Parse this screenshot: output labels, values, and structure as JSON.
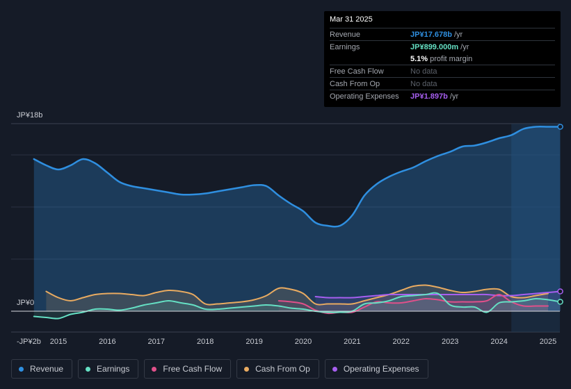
{
  "tooltip": {
    "date": "Mar 31 2025",
    "rows": [
      {
        "label": "Revenue",
        "value": "JP¥17.678b",
        "unit": " /yr",
        "color": "#2f8fe0"
      },
      {
        "label": "Earnings",
        "value": "JP¥899.000m",
        "unit": " /yr",
        "color": "#65e0c4"
      },
      {
        "label": "",
        "value": "5.1%",
        "unit": " profit margin",
        "color": "#ffffff"
      },
      {
        "label": "Free Cash Flow",
        "nodata": "No data"
      },
      {
        "label": "Cash From Op",
        "nodata": "No data"
      },
      {
        "label": "Operating Expenses",
        "value": "JP¥1.897b",
        "unit": " /yr",
        "color": "#a75ff0"
      }
    ]
  },
  "legend": [
    {
      "label": "Revenue",
      "color": "#2f8fe0"
    },
    {
      "label": "Earnings",
      "color": "#65e0c4"
    },
    {
      "label": "Free Cash Flow",
      "color": "#e0508a"
    },
    {
      "label": "Cash From Op",
      "color": "#e9ab61"
    },
    {
      "label": "Operating Expenses",
      "color": "#a75ff0"
    }
  ],
  "chart_data": {
    "type": "area",
    "y_unit": "JP¥ billions",
    "ylim": [
      -2,
      18
    ],
    "xlim": [
      2014.45,
      2025.25
    ],
    "y_tick_labels": [
      {
        "value": 18,
        "label": "JP¥18b"
      },
      {
        "value": 0,
        "label": "JP¥0"
      },
      {
        "value": -2,
        "label": "-JP¥2b"
      }
    ],
    "x_ticks": [
      2015,
      2016,
      2017,
      2018,
      2019,
      2020,
      2021,
      2022,
      2023,
      2024,
      2025
    ],
    "x_tick_labels": [
      "2015",
      "2016",
      "2017",
      "2018",
      "2019",
      "2020",
      "2021",
      "2022",
      "2023",
      "2024",
      "2025"
    ],
    "highlight_from": 2024.25,
    "series": [
      {
        "name": "Revenue",
        "color": "#2f8fe0",
        "x": [
          2014.5,
          2014.75,
          2015.0,
          2015.25,
          2015.5,
          2015.75,
          2016.0,
          2016.25,
          2016.5,
          2016.75,
          2017.0,
          2017.25,
          2017.5,
          2017.75,
          2018.0,
          2018.25,
          2018.5,
          2018.75,
          2019.0,
          2019.25,
          2019.5,
          2019.75,
          2020.0,
          2020.25,
          2020.5,
          2020.75,
          2021.0,
          2021.25,
          2021.5,
          2021.75,
          2022.0,
          2022.25,
          2022.5,
          2022.75,
          2023.0,
          2023.25,
          2023.5,
          2023.75,
          2024.0,
          2024.25,
          2024.5,
          2024.75,
          2025.0,
          2025.25
        ],
        "values": [
          14.6,
          14.0,
          13.6,
          14.0,
          14.6,
          14.2,
          13.3,
          12.4,
          12.0,
          11.8,
          11.6,
          11.4,
          11.2,
          11.2,
          11.3,
          11.5,
          11.7,
          11.9,
          12.1,
          12.0,
          11.1,
          10.3,
          9.6,
          8.5,
          8.2,
          8.2,
          9.2,
          11.1,
          12.2,
          12.9,
          13.4,
          13.8,
          14.4,
          14.9,
          15.3,
          15.8,
          15.9,
          16.2,
          16.6,
          16.9,
          17.5,
          17.7,
          17.7,
          17.7
        ]
      },
      {
        "name": "Earnings",
        "color": "#65e0c4",
        "x": [
          2014.5,
          2014.75,
          2015.0,
          2015.25,
          2015.5,
          2015.75,
          2016.0,
          2016.25,
          2016.5,
          2016.75,
          2017.0,
          2017.25,
          2017.5,
          2017.75,
          2018.0,
          2018.25,
          2018.5,
          2018.75,
          2019.0,
          2019.25,
          2019.5,
          2019.75,
          2020.0,
          2020.25,
          2020.5,
          2020.75,
          2021.0,
          2021.25,
          2021.5,
          2021.75,
          2022.0,
          2022.25,
          2022.5,
          2022.75,
          2023.0,
          2023.25,
          2023.5,
          2023.75,
          2024.0,
          2024.25,
          2024.5,
          2024.75,
          2025.0,
          2025.25
        ],
        "values": [
          -0.5,
          -0.6,
          -0.7,
          -0.3,
          -0.1,
          0.2,
          0.2,
          0.1,
          0.3,
          0.6,
          0.8,
          1.0,
          0.8,
          0.6,
          0.2,
          0.2,
          0.3,
          0.4,
          0.5,
          0.6,
          0.5,
          0.3,
          0.2,
          0.0,
          -0.1,
          -0.1,
          0.0,
          0.7,
          0.8,
          1.0,
          1.4,
          1.5,
          1.6,
          1.7,
          0.6,
          0.4,
          0.4,
          -0.1,
          0.8,
          0.9,
          1.0,
          1.2,
          1.1,
          0.9
        ]
      },
      {
        "name": "Free Cash Flow",
        "color": "#e0508a",
        "x": [
          2019.5,
          2019.75,
          2020.0,
          2020.25,
          2020.5,
          2020.75,
          2021.0,
          2021.25,
          2021.5,
          2021.75,
          2022.0,
          2022.25,
          2022.5,
          2022.75,
          2023.0,
          2023.25,
          2023.5,
          2023.75,
          2024.0,
          2024.25,
          2024.5,
          2024.75,
          2025.0
        ],
        "values": [
          1.0,
          0.9,
          0.7,
          0.1,
          -0.2,
          -0.1,
          -0.1,
          0.4,
          0.9,
          0.8,
          0.8,
          1.0,
          1.2,
          1.1,
          0.9,
          0.9,
          0.9,
          1.0,
          1.6,
          0.9,
          0.5,
          0.5,
          0.5
        ]
      },
      {
        "name": "Cash From Op",
        "color": "#e9ab61",
        "x": [
          2014.75,
          2015.0,
          2015.25,
          2015.5,
          2015.75,
          2016.0,
          2016.25,
          2016.5,
          2016.75,
          2017.0,
          2017.25,
          2017.5,
          2017.75,
          2018.0,
          2018.25,
          2018.5,
          2018.75,
          2019.0,
          2019.25,
          2019.5,
          2019.75,
          2020.0,
          2020.25,
          2020.5,
          2020.75,
          2021.0,
          2021.25,
          2021.5,
          2021.75,
          2022.0,
          2022.25,
          2022.5,
          2022.75,
          2023.0,
          2023.25,
          2023.5,
          2023.75,
          2024.0,
          2024.25,
          2024.5,
          2024.75,
          2025.0
        ],
        "values": [
          1.9,
          1.3,
          1.0,
          1.3,
          1.6,
          1.7,
          1.7,
          1.6,
          1.5,
          1.8,
          2.0,
          1.9,
          1.6,
          0.7,
          0.7,
          0.8,
          0.9,
          1.1,
          1.5,
          2.2,
          2.1,
          1.7,
          0.7,
          0.7,
          0.7,
          0.7,
          1.0,
          1.3,
          1.6,
          2.0,
          2.4,
          2.5,
          2.3,
          2.0,
          1.8,
          1.9,
          2.1,
          2.1,
          1.4,
          1.3,
          1.5,
          1.7
        ]
      },
      {
        "name": "Operating Expenses",
        "color": "#a75ff0",
        "x": [
          2020.25,
          2020.5,
          2020.75,
          2021.0,
          2021.25,
          2021.5,
          2021.75,
          2022.0,
          2022.25,
          2022.5,
          2022.75,
          2023.0,
          2023.25,
          2023.5,
          2023.75,
          2024.0,
          2024.25,
          2024.5,
          2024.75,
          2025.0,
          2025.25
        ],
        "values": [
          1.4,
          1.3,
          1.3,
          1.3,
          1.4,
          1.5,
          1.6,
          1.6,
          1.6,
          1.6,
          1.6,
          1.6,
          1.6,
          1.6,
          1.6,
          1.5,
          1.5,
          1.6,
          1.7,
          1.8,
          1.9
        ]
      }
    ]
  }
}
